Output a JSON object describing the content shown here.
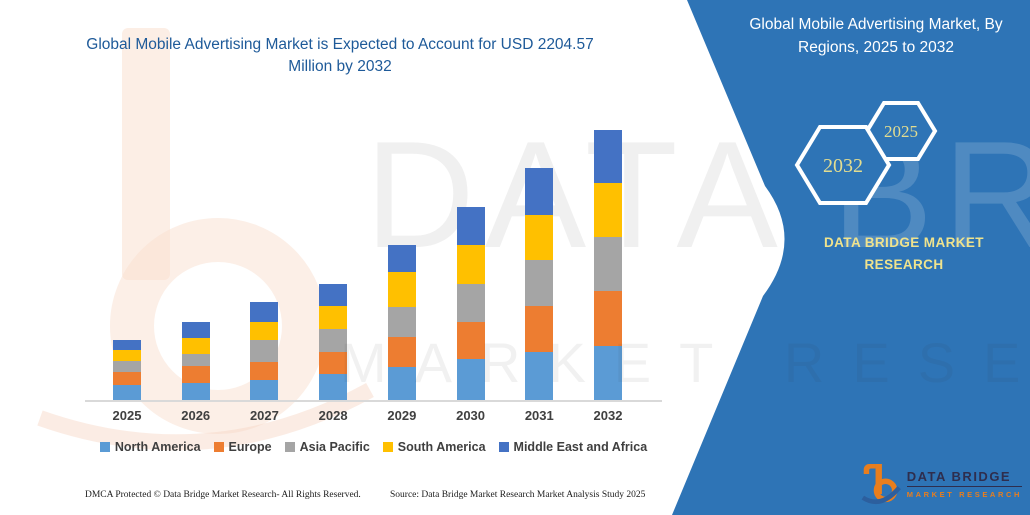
{
  "banner": {
    "chart_title": "Global Mobile Advertising Market is Expected to Account for USD 2204.57 Million by 2032",
    "watermark": {
      "line1": "DATA BRIDGE",
      "line2": "MARKET RESEARCH"
    },
    "panel": {
      "title": "Global Mobile Advertising Market, By Regions, 2025 to 2032",
      "hexagon_back_year": "2025",
      "hexagon_front_year": "2032",
      "brand": "DATA BRIDGE MARKET RESEARCH",
      "logo_name": "DATA BRIDGE",
      "logo_tagline": "MARKET RESEARCH",
      "panel_color": "#2E74B6",
      "accent_text_color": "#EFE38D"
    },
    "footer": {
      "dmca": "DMCA Protected © Data Bridge Market Research- All Rights Reserved.",
      "source": "Source: Data Bridge Market Research Market Analysis Study 2025"
    }
  },
  "chart_data": {
    "type": "bar",
    "stacked": true,
    "title": "Global Mobile Advertising Market is Expected to Account for USD 2204.57 Million by 2032",
    "unit": "USD Million",
    "categories": [
      "2025",
      "2026",
      "2027",
      "2028",
      "2029",
      "2030",
      "2031",
      "2032"
    ],
    "series": [
      {
        "name": "North America",
        "color": "#5B9BD5",
        "values": [
          123,
          139,
          164,
          213,
          271,
          336,
          394,
          443
        ]
      },
      {
        "name": "Europe",
        "color": "#ED7D31",
        "values": [
          107,
          139,
          148,
          180,
          246,
          303,
          377,
          450
        ]
      },
      {
        "name": "Asia Pacific",
        "color": "#A5A5A5",
        "values": [
          90,
          98,
          180,
          189,
          246,
          312,
          369,
          443
        ]
      },
      {
        "name": "South America",
        "color": "#FFC000",
        "values": [
          90,
          131,
          148,
          189,
          287,
          312,
          369,
          435
        ]
      },
      {
        "name": "Middle East and Africa",
        "color": "#4472C4",
        "values": [
          82,
          131,
          164,
          180,
          213,
          312,
          385,
          434
        ]
      }
    ],
    "totals_by_year": [
      492,
      638,
      804,
      951,
      1263,
      1575,
      1894,
      2205
    ],
    "highlight_total_2032": 2204.57,
    "ylim": [
      0,
      2300
    ],
    "grid": false,
    "legend_position": "bottom",
    "xlabel": "",
    "ylabel": ""
  }
}
